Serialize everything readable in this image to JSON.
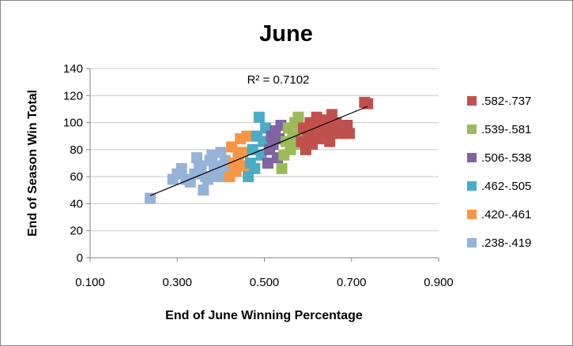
{
  "chart_data": {
    "type": "scatter",
    "title": "June",
    "xlabel": "End of June Winning Percentage",
    "ylabel": "End of Season Win Total",
    "xlim": [
      0.1,
      0.9
    ],
    "ylim": [
      0,
      140
    ],
    "x_ticks": [
      "0.100",
      "0.300",
      "0.500",
      "0.700",
      "0.900"
    ],
    "y_ticks": [
      "0",
      "20",
      "40",
      "60",
      "80",
      "100",
      "120",
      "140"
    ],
    "grid": "horizontal",
    "legend_position": "right",
    "trendline": {
      "type": "linear",
      "label": "R² = 0.7102",
      "start": [
        0.238,
        46
      ],
      "end": [
        0.737,
        112
      ]
    },
    "series": [
      {
        "name": ".582-.737",
        "color": "#c0504d",
        "points": [
          [
            0.585,
            86
          ],
          [
            0.59,
            96
          ],
          [
            0.595,
            80
          ],
          [
            0.6,
            90
          ],
          [
            0.605,
            100
          ],
          [
            0.61,
            84
          ],
          [
            0.615,
            94
          ],
          [
            0.62,
            104
          ],
          [
            0.625,
            88
          ],
          [
            0.63,
            98
          ],
          [
            0.635,
            92
          ],
          [
            0.64,
            102
          ],
          [
            0.645,
            96
          ],
          [
            0.65,
            86
          ],
          [
            0.655,
            106
          ],
          [
            0.66,
            94
          ],
          [
            0.665,
            100
          ],
          [
            0.675,
            92
          ],
          [
            0.68,
            98
          ],
          [
            0.69,
            98
          ],
          [
            0.695,
            92
          ],
          [
            0.73,
            115
          ],
          [
            0.737,
            114
          ]
        ]
      },
      {
        "name": ".539-.581",
        "color": "#9bbb59",
        "points": [
          [
            0.54,
            66
          ],
          [
            0.545,
            76
          ],
          [
            0.55,
            86
          ],
          [
            0.555,
            96
          ],
          [
            0.56,
            80
          ],
          [
            0.565,
            90
          ],
          [
            0.57,
            100
          ],
          [
            0.575,
            84
          ],
          [
            0.578,
            104
          ],
          [
            0.581,
            94
          ]
        ]
      },
      {
        "name": ".506-.538",
        "color": "#8064a2",
        "points": [
          [
            0.508,
            70
          ],
          [
            0.512,
            80
          ],
          [
            0.516,
            90
          ],
          [
            0.52,
            84
          ],
          [
            0.525,
            94
          ],
          [
            0.53,
            74
          ],
          [
            0.534,
            88
          ],
          [
            0.538,
            98
          ]
        ]
      },
      {
        "name": ".462-.505",
        "color": "#4bacc6",
        "points": [
          [
            0.463,
            60
          ],
          [
            0.468,
            70
          ],
          [
            0.473,
            80
          ],
          [
            0.478,
            66
          ],
          [
            0.483,
            90
          ],
          [
            0.488,
            104
          ],
          [
            0.493,
            76
          ],
          [
            0.498,
            86
          ],
          [
            0.503,
            96
          ]
        ]
      },
      {
        "name": ".420-.461",
        "color": "#f79646",
        "points": [
          [
            0.42,
            60
          ],
          [
            0.425,
            82
          ],
          [
            0.43,
            70
          ],
          [
            0.435,
            64
          ],
          [
            0.44,
            76
          ],
          [
            0.445,
            88
          ],
          [
            0.45,
            78
          ],
          [
            0.455,
            68
          ],
          [
            0.46,
            90
          ]
        ]
      },
      {
        "name": ".238-.419",
        "color": "#95b3d7",
        "points": [
          [
            0.238,
            44
          ],
          [
            0.29,
            58
          ],
          [
            0.3,
            62
          ],
          [
            0.31,
            66
          ],
          [
            0.32,
            58
          ],
          [
            0.33,
            56
          ],
          [
            0.34,
            62
          ],
          [
            0.345,
            74
          ],
          [
            0.35,
            68
          ],
          [
            0.355,
            66
          ],
          [
            0.36,
            50
          ],
          [
            0.365,
            60
          ],
          [
            0.37,
            58
          ],
          [
            0.375,
            72
          ],
          [
            0.38,
            76
          ],
          [
            0.385,
            64
          ],
          [
            0.39,
            68
          ],
          [
            0.395,
            60
          ],
          [
            0.4,
            78
          ],
          [
            0.405,
            62
          ],
          [
            0.41,
            72
          ],
          [
            0.415,
            68
          ],
          [
            0.419,
            66
          ]
        ]
      }
    ]
  }
}
